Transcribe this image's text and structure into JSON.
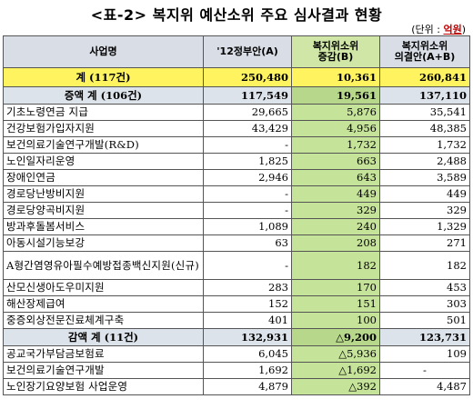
{
  "title": "<표-2> 복지위 예산소위 주요 심사결과 현황",
  "unit": {
    "prefix": "(단위 :",
    "value": "억원",
    "suffix": ")"
  },
  "headers": {
    "name": "사업명",
    "budget": "'12정부안(A)",
    "change_line1": "복지위소위",
    "change_line2": "증감(B)",
    "result_line1": "복지위소위",
    "result_line2": "의결안(A+B)"
  },
  "total": {
    "name": "계 (117건)",
    "budget": "250,480",
    "change": "10,361",
    "result": "260,841"
  },
  "increase": {
    "name": "증액 계 (106건)",
    "budget": "117,549",
    "change": "19,561",
    "result": "137,110"
  },
  "increase_rows": [
    {
      "name": "기초노령연금 지급",
      "budget": "29,665",
      "change": "5,876",
      "result": "35,541"
    },
    {
      "name": "건강보험가입자지원",
      "budget": "43,429",
      "change": "4,956",
      "result": "48,385"
    },
    {
      "name": "보건의료기술연구개발(R&D)",
      "budget": "-",
      "change": "1,732",
      "result": "1,732"
    },
    {
      "name": "노인일자리운영",
      "budget": "1,825",
      "change": "663",
      "result": "2,488"
    },
    {
      "name": "장애인연금",
      "budget": "2,946",
      "change": "643",
      "result": "3,589"
    },
    {
      "name": "경로당난방비지원",
      "budget": "-",
      "change": "449",
      "result": "449"
    },
    {
      "name": "경로당양곡비지원",
      "budget": "-",
      "change": "329",
      "result": "329"
    },
    {
      "name": "방과후돌봄서비스",
      "budget": "1,089",
      "change": "240",
      "result": "1,329"
    },
    {
      "name": "아동시설기능보강",
      "budget": "63",
      "change": "208",
      "result": "271"
    },
    {
      "name": "A형간염영유아필수예방접종백신지원(신규)",
      "budget": "-",
      "change": "182",
      "result": "182"
    },
    {
      "name": "산모신생아도우미지원",
      "budget": "283",
      "change": "170",
      "result": "453"
    },
    {
      "name": "해산장제급여",
      "budget": "152",
      "change": "151",
      "result": "303"
    },
    {
      "name": "중증외상전문진료체계구축",
      "budget": "401",
      "change": "100",
      "result": "501"
    }
  ],
  "decrease": {
    "name": "감액 계 (11건)",
    "budget": "132,931",
    "change": "△9,200",
    "result": "123,731"
  },
  "decrease_rows": [
    {
      "name": "공교국가부담금보험료",
      "budget": "6,045",
      "change": "△5,936",
      "result": "109"
    },
    {
      "name": "보건의료기술연구개발",
      "budget": "1,692",
      "change": "△1,692",
      "result": "-"
    },
    {
      "name": "노인장기요양보험 사업운영",
      "budget": "4,879",
      "change": "△392",
      "result": "4,487"
    }
  ]
}
